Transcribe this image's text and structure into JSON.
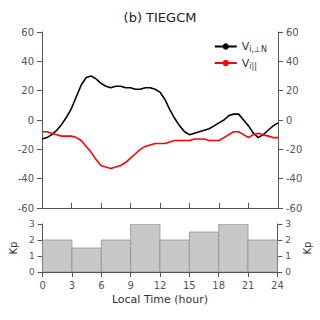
{
  "chart_data": [
    {
      "type": "line",
      "title": "(b) TIEGCM",
      "x": [
        0,
        0.5,
        1,
        1.5,
        2,
        2.5,
        3,
        3.5,
        4,
        4.5,
        5,
        5.5,
        6,
        6.5,
        7,
        7.5,
        8,
        8.5,
        9,
        9.5,
        10,
        10.5,
        11,
        11.5,
        12,
        12.5,
        13,
        13.5,
        14,
        14.5,
        15,
        15.5,
        16,
        16.5,
        17,
        17.5,
        18,
        18.5,
        19,
        19.5,
        20,
        20.5,
        21,
        21.5,
        22,
        22.5,
        23,
        23.5,
        24
      ],
      "series": [
        {
          "name": "Vi,⊥N",
          "color": "black",
          "values": [
            -13,
            -12,
            -10,
            -7,
            -3,
            2,
            8,
            16,
            24,
            29,
            30,
            28,
            25,
            23,
            22,
            23,
            23,
            22,
            22,
            21,
            21,
            22,
            22,
            21,
            19,
            14,
            7,
            1,
            -4,
            -8,
            -10,
            -9,
            -8,
            -7,
            -6,
            -4,
            -2,
            0,
            3,
            4,
            4,
            0,
            -4,
            -9,
            -12,
            -10,
            -7,
            -4,
            -2
          ]
        },
        {
          "name": "Vi||",
          "color": "red",
          "values": [
            -8,
            -8,
            -9,
            -10,
            -11,
            -11,
            -11,
            -12,
            -14,
            -18,
            -22,
            -27,
            -31,
            -32,
            -33,
            -32,
            -31,
            -29,
            -26,
            -23,
            -20,
            -18,
            -17,
            -16,
            -16,
            -16,
            -15,
            -14,
            -14,
            -14,
            -14,
            -13,
            -13,
            -13,
            -14,
            -14,
            -14,
            -12,
            -10,
            -8,
            -8,
            -10,
            -12,
            -10,
            -9,
            -10,
            -11,
            -12,
            -12
          ]
        }
      ],
      "xlim": [
        0,
        24
      ],
      "xticks": [
        0,
        3,
        6,
        9,
        12,
        15,
        18,
        21,
        24
      ],
      "ylim": [
        -60,
        60
      ],
      "yticks": [
        -60,
        -40,
        -20,
        0,
        20,
        40,
        60
      ],
      "y2lim": [
        -60,
        60
      ],
      "y2ticks": [
        -60,
        -40,
        -20,
        0,
        20,
        40,
        60
      ],
      "legend": "upper right",
      "grid": false,
      "tick_labels": "y"
    },
    {
      "type": "bar",
      "xlabel": "Local Time (hour)",
      "ylabel": "Kp",
      "y2label": "Kp",
      "bins": [
        0,
        3,
        6,
        9,
        12,
        15,
        18,
        21,
        24
      ],
      "values": [
        2.0,
        1.5,
        2.0,
        3.0,
        2.0,
        2.5,
        3.0,
        2.0
      ],
      "color": "#c8c8c8",
      "xlim": [
        0,
        24
      ],
      "xticks": [
        0,
        3,
        6,
        9,
        12,
        15,
        18,
        21,
        24
      ],
      "ylim": [
        0,
        3
      ],
      "yticks": [
        0,
        1,
        2,
        3
      ],
      "y2lim": [
        0,
        3
      ],
      "y2ticks": [
        0,
        1,
        2,
        3
      ],
      "grid": false
    }
  ]
}
